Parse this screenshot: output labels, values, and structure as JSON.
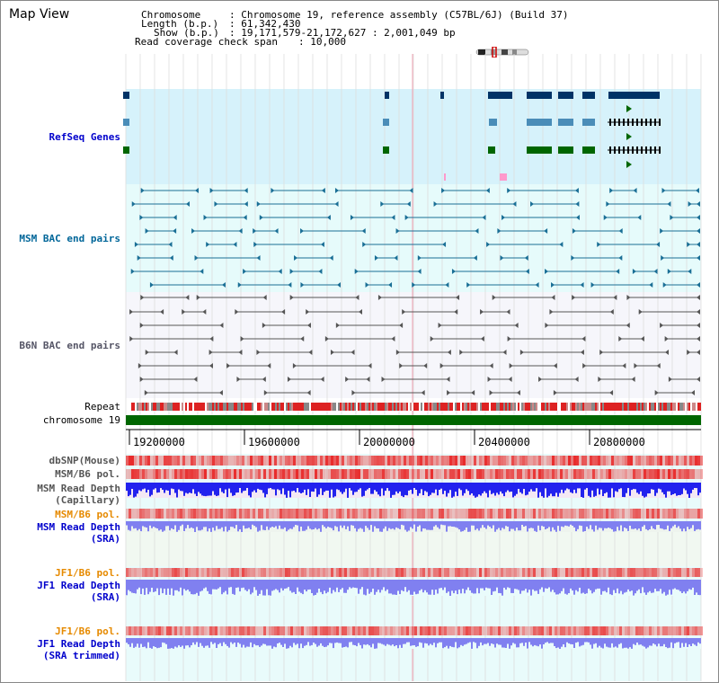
{
  "page": {
    "title": "Map View"
  },
  "info": {
    "chromosome_key": "Chromosome",
    "chromosome_val": ": Chromosome 19, reference assembly (C57BL/6J) (Build 37)",
    "length_key": "Length (b.p.)",
    "length_val": ": 61,342,430",
    "show_key": "Show (b.p.)",
    "show_val": ": 19,171,579-21,172,627 : 2,001,049 bp",
    "coverage_key": "Read coverage check span",
    "coverage_val": ": 10,000"
  },
  "tracks": {
    "refseq": "RefSeq Genes",
    "msm_bac": "MSM BAC end pairs",
    "b6n_bac": "B6N BAC end pairs",
    "repeat": "Repeat",
    "chromosome": "chromosome 19",
    "dbsnp": "dbSNP(Mouse)",
    "msm_b6_pol_1": "MSM/B6 pol.",
    "msm_depth_cap_1": "MSM Read Depth",
    "msm_depth_cap_2": "(Capillary)",
    "msm_b6_pol_2": "MSM/B6 pol.",
    "msm_depth_sra_1": "MSM Read Depth",
    "msm_depth_sra_2": "(SRA)",
    "jf1_b6_pol_1": "JF1/B6 pol.",
    "jf1_depth_sra_1": "JF1 Read Depth",
    "jf1_depth_sra_2": "(SRA)",
    "jf1_b6_pol_2": "JF1/B6 pol.",
    "jf1_depth_trim_1": "JF1 Read Depth",
    "jf1_depth_trim_2": "(SRA trimmed)"
  },
  "ruler": {
    "ticks": [
      "19200000",
      "19600000",
      "20000000",
      "20400000",
      "20800000"
    ]
  },
  "colors": {
    "refseq_bg": "#d6f2fb",
    "msm_bg": "#e6fbfb",
    "b6n_bg": "#f6f6fb",
    "lower_bg": "#e9fbfb",
    "depth_bg": "#f1f8f1",
    "refseq_label": "#0000cc",
    "msm_label": "#006699",
    "b6n_label": "#555566",
    "pol_label": "#e68a00",
    "depth_label": "#0000cc",
    "chromosome_bar": "#006600",
    "gene_dark": "#003366",
    "gene_mid": "#4a8db8",
    "gene_green": "#006600",
    "msm_feature": "#1a6f96",
    "b6n_feature": "#555555",
    "depth_blue": "#2222ee",
    "depth_lavender": "#8080f0",
    "pol_red": "#e85050"
  }
}
